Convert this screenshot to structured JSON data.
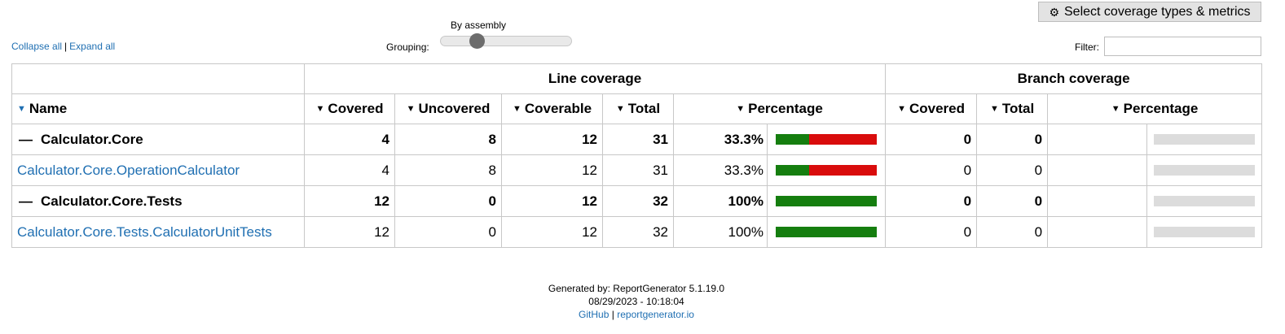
{
  "toolbar": {
    "metrics_button_label": "Select coverage types & metrics",
    "collapse_all": "Collapse all",
    "separator": "|",
    "expand_all": "Expand all",
    "grouping_caption": "By assembly",
    "grouping_label": "Grouping:",
    "grouping_level": 0,
    "filter_label": "Filter:",
    "filter_value": ""
  },
  "table": {
    "group_headers": {
      "line": "Line coverage",
      "branch": "Branch coverage"
    },
    "columns": {
      "name": "Name",
      "line_covered": "Covered",
      "line_uncovered": "Uncovered",
      "line_coverable": "Coverable",
      "line_total": "Total",
      "line_percentage": "Percentage",
      "branch_covered": "Covered",
      "branch_total": "Total",
      "branch_percentage": "Percentage"
    },
    "rows": [
      {
        "type": "assembly",
        "name": "Calculator.Core",
        "covered": "4",
        "uncovered": "8",
        "coverable": "12",
        "total": "31",
        "percentage": "33.3%",
        "covered_fraction": 0.333,
        "branch_covered": "0",
        "branch_total": "0"
      },
      {
        "type": "class",
        "name": "Calculator.Core.OperationCalculator",
        "covered": "4",
        "uncovered": "8",
        "coverable": "12",
        "total": "31",
        "percentage": "33.3%",
        "covered_fraction": 0.333,
        "branch_covered": "0",
        "branch_total": "0"
      },
      {
        "type": "assembly",
        "name": "Calculator.Core.Tests",
        "covered": "12",
        "uncovered": "0",
        "coverable": "12",
        "total": "32",
        "percentage": "100%",
        "covered_fraction": 1.0,
        "branch_covered": "0",
        "branch_total": "0"
      },
      {
        "type": "class",
        "name": "Calculator.Core.Tests.CalculatorUnitTests",
        "covered": "12",
        "uncovered": "0",
        "coverable": "12",
        "total": "32",
        "percentage": "100%",
        "covered_fraction": 1.0,
        "branch_covered": "0",
        "branch_total": "0"
      }
    ]
  },
  "colors": {
    "covered": "#157e0f",
    "uncovered": "#d90c0c",
    "empty": "#dcdcdc",
    "link": "#1f6fb2"
  },
  "footer": {
    "generated_by": "Generated by: ReportGenerator 5.1.19.0",
    "timestamp": "08/29/2023 - 10:18:04",
    "github": "GitHub",
    "separator": "|",
    "website": "reportgenerator.io"
  }
}
